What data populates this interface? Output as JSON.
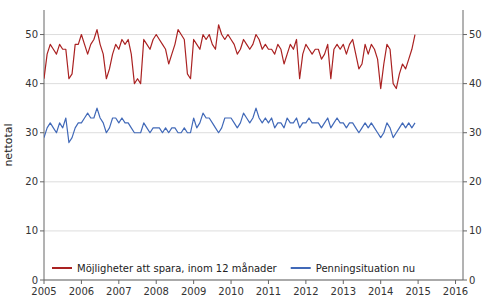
{
  "chart_data": {
    "type": "line",
    "y_label": "nettotal",
    "x": [
      2005,
      2005.0833333333333,
      2005.1666666666667,
      2005.25,
      2005.3333333333333,
      2005.4166666666667,
      2005.5,
      2005.5833333333333,
      2005.6666666666667,
      2005.75,
      2005.8333333333333,
      2005.9166666666667,
      2006,
      2006.0833333333333,
      2006.1666666666667,
      2006.25,
      2006.3333333333333,
      2006.4166666666667,
      2006.5,
      2006.5833333333333,
      2006.6666666666667,
      2006.75,
      2006.8333333333333,
      2006.9166666666667,
      2007,
      2007.0833333333333,
      2007.1666666666667,
      2007.25,
      2007.3333333333333,
      2007.4166666666667,
      2007.5,
      2007.5833333333333,
      2007.6666666666667,
      2007.75,
      2007.8333333333333,
      2007.9166666666667,
      2008,
      2008.0833333333333,
      2008.1666666666667,
      2008.25,
      2008.3333333333333,
      2008.4166666666667,
      2008.5,
      2008.5833333333333,
      2008.6666666666667,
      2008.75,
      2008.8333333333333,
      2008.9166666666667,
      2009,
      2009.0833333333333,
      2009.1666666666667,
      2009.25,
      2009.3333333333333,
      2009.4166666666667,
      2009.5,
      2009.5833333333333,
      2009.6666666666667,
      2009.75,
      2009.8333333333333,
      2009.9166666666667,
      2010,
      2010.0833333333333,
      2010.1666666666667,
      2010.25,
      2010.3333333333333,
      2010.4166666666667,
      2010.5,
      2010.5833333333333,
      2010.6666666666667,
      2010.75,
      2010.8333333333333,
      2010.9166666666667,
      2011,
      2011.0833333333333,
      2011.1666666666667,
      2011.25,
      2011.3333333333333,
      2011.4166666666667,
      2011.5,
      2011.5833333333333,
      2011.6666666666667,
      2011.75,
      2011.8333333333333,
      2011.9166666666667,
      2012,
      2012.0833333333333,
      2012.1666666666667,
      2012.25,
      2012.3333333333333,
      2012.4166666666667,
      2012.5,
      2012.5833333333333,
      2012.6666666666667,
      2012.75,
      2012.8333333333333,
      2012.9166666666667,
      2013,
      2013.0833333333333,
      2013.1666666666667,
      2013.25,
      2013.3333333333333,
      2013.4166666666667,
      2013.5,
      2013.5833333333333,
      2013.6666666666667,
      2013.75,
      2013.8333333333333,
      2013.9166666666667,
      2014,
      2014.0833333333333,
      2014.1666666666667,
      2014.25,
      2014.3333333333333,
      2014.4166666666667,
      2014.5,
      2014.5833333333333,
      2014.6666666666667,
      2014.75,
      2014.8333333333333,
      2014.9166666666667
    ],
    "series": [
      {
        "name": "Möjligheter att spara, inom 12 månader",
        "color": "#aa2222",
        "values": [
          41,
          46,
          48,
          47,
          46,
          48,
          47,
          47,
          41,
          42,
          48,
          48,
          50,
          48,
          46,
          48,
          49,
          51,
          48,
          46,
          41,
          43,
          46,
          48,
          47,
          49,
          48,
          49,
          46,
          40,
          41,
          40,
          49,
          48,
          47,
          49,
          50,
          49,
          48,
          47,
          44,
          46,
          48,
          51,
          50,
          49,
          42,
          41,
          49,
          48,
          47,
          50,
          49,
          50,
          48,
          47,
          52,
          50,
          49,
          50,
          49,
          48,
          46,
          47,
          49,
          48,
          47,
          48,
          50,
          49,
          47,
          48,
          47,
          47,
          46,
          48,
          47,
          44,
          46,
          48,
          47,
          49,
          41,
          46,
          48,
          47,
          46,
          47,
          47,
          45,
          46,
          48,
          41,
          47,
          48,
          47,
          48,
          46,
          48,
          49,
          46,
          43,
          44,
          48,
          46,
          48,
          47,
          45,
          39,
          44,
          48,
          47,
          40,
          39,
          42,
          44,
          43,
          45,
          47,
          50
        ]
      },
      {
        "name": "Penningsituation nu",
        "color": "#4169b8",
        "values": [
          29,
          31,
          32,
          31,
          30,
          32,
          31,
          33,
          28,
          29,
          31,
          32,
          32,
          33,
          34,
          33,
          33,
          35,
          33,
          32,
          30,
          31,
          33,
          33,
          32,
          33,
          32,
          32,
          31,
          30,
          30,
          30,
          32,
          31,
          30,
          31,
          31,
          31,
          30,
          31,
          30,
          31,
          31,
          30,
          30,
          31,
          30,
          30,
          33,
          31,
          32,
          34,
          33,
          33,
          32,
          31,
          30,
          31,
          33,
          33,
          33,
          32,
          31,
          32,
          34,
          33,
          32,
          33,
          35,
          33,
          32,
          33,
          32,
          33,
          31,
          32,
          32,
          31,
          33,
          32,
          32,
          33,
          31,
          32,
          32,
          33,
          32,
          32,
          32,
          31,
          32,
          33,
          31,
          32,
          33,
          32,
          32,
          31,
          32,
          32,
          31,
          30,
          31,
          32,
          31,
          32,
          31,
          30,
          29,
          30,
          32,
          31,
          29,
          30,
          31,
          32,
          31,
          32,
          31,
          32
        ]
      }
    ],
    "xlim": [
      2005.0,
      2016.2
    ],
    "xticks": [
      2005,
      2006,
      2007,
      2008,
      2009,
      2010,
      2011,
      2012,
      2013,
      2014,
      2015,
      2016
    ],
    "ylim": [
      0,
      55
    ],
    "yticks": [
      0,
      10,
      20,
      30,
      40,
      50
    ],
    "y2lim": [
      0,
      55
    ],
    "y2ticks": [
      0,
      10,
      20,
      30,
      40,
      50
    ],
    "grid": true,
    "legend": "lower left"
  }
}
